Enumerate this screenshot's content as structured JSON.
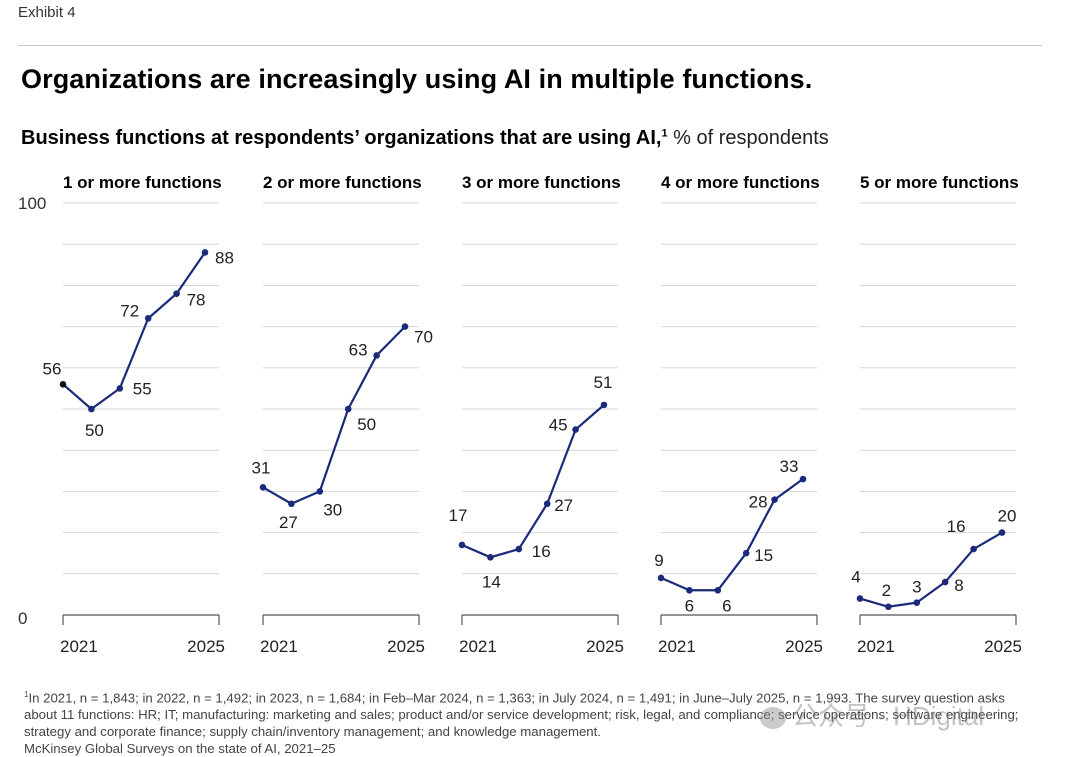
{
  "exhibit_label": "Exhibit 4",
  "headline": "Organizations are increasingly using AI in multiple functions.",
  "subtitle": {
    "main": "Business functions at respondents’ organizations that are using AI,",
    "footnote_marker": "1",
    "unit": " % of respondents"
  },
  "colors": {
    "line": "#1b2a7a",
    "first_point": "#111111",
    "grid": "#d6d6d6",
    "axis": "#555555"
  },
  "chart_data": {
    "type": "line",
    "ylim": [
      0,
      100
    ],
    "y_ticks": [
      "0",
      "100"
    ],
    "x_tick_labels": [
      "2021",
      "2025"
    ],
    "x_points": [
      "2021",
      "2022",
      "2023",
      "Feb–Mar 2024",
      "July 2024",
      "June–July 2025"
    ],
    "series": [
      {
        "name": "1 or more functions",
        "values": [
          56,
          50,
          55,
          72,
          78,
          88
        ]
      },
      {
        "name": "2 or more functions",
        "values": [
          31,
          27,
          30,
          50,
          63,
          70
        ]
      },
      {
        "name": "3 or more functions",
        "values": [
          17,
          14,
          16,
          27,
          45,
          51
        ]
      },
      {
        "name": "4 or more functions",
        "values": [
          9,
          6,
          6,
          15,
          28,
          33
        ]
      },
      {
        "name": "5 or more functions",
        "values": [
          4,
          2,
          3,
          8,
          16,
          20
        ]
      }
    ]
  },
  "footnote": {
    "marker": "1",
    "text": "In 2021, n = 1,843; in 2022, n = 1,492; in 2023, n = 1,684; in Feb–Mar 2024, n = 1,363; in July 2024, n = 1,491; in June–July 2025, n = 1,993. The survey question asks about 11 functions: HR; IT; manufacturing: marketing and sales; product and/or service development; risk, legal, and compliance; service operations; software engineering; strategy and corporate finance; supply chain/inventory management; and knowledge management.",
    "source": "McKinsey Global Surveys on the state of AI, 2021–25"
  },
  "watermark": "公众号 · HDigital"
}
